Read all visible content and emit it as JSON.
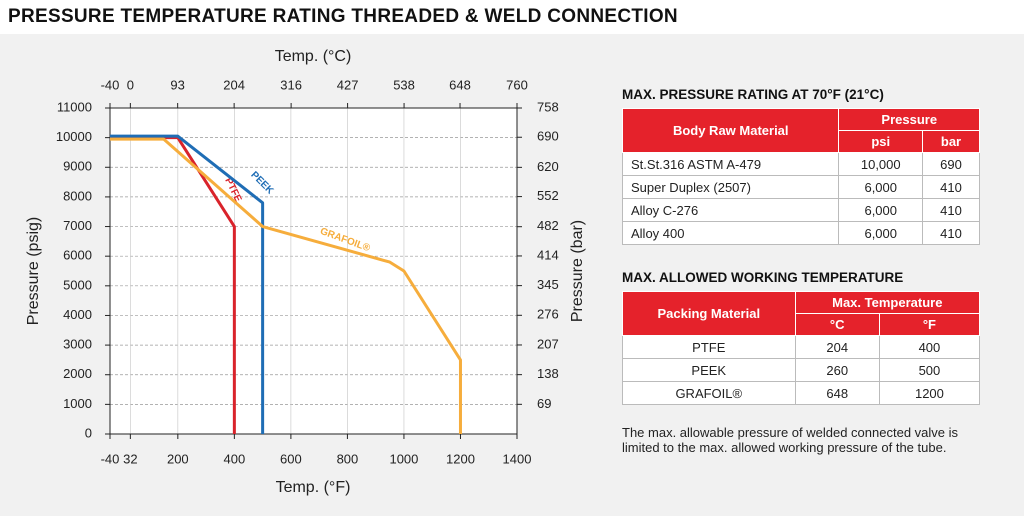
{
  "title": "PRESSURE TEMPERATURE RATING THREADED & WELD CONNECTION",
  "chart_data": {
    "type": "line",
    "x_label": "Temp. (°F)",
    "x2_label": "Temp. (°C)",
    "y_label": "Pressure (psig)",
    "y2_label": "Pressure (bar)",
    "xlim": [
      -40,
      1400
    ],
    "xticks": [
      -40,
      32,
      200,
      400,
      600,
      800,
      1000,
      1200,
      1400
    ],
    "x2lim": [
      -40,
      760
    ],
    "x2ticks": [
      -40,
      0,
      93,
      204,
      316,
      427,
      538,
      648,
      760
    ],
    "ylim": [
      0,
      11000
    ],
    "yticks": [
      0,
      1000,
      2000,
      3000,
      4000,
      5000,
      6000,
      7000,
      8000,
      9000,
      10000,
      11000
    ],
    "y2lim": [
      0,
      758
    ],
    "y2ticks": [
      69,
      138,
      207,
      276,
      345,
      414,
      482,
      552,
      620,
      690,
      758
    ],
    "grid": true,
    "series": [
      {
        "name": "PTFE",
        "color": "#d9232b",
        "x": [
          -40,
          200,
          400,
          400
        ],
        "values": [
          10000,
          10000,
          7000,
          0
        ]
      },
      {
        "name": "PEEK",
        "color": "#1f6db5",
        "x": [
          -40,
          200,
          500,
          500
        ],
        "values": [
          10050,
          10050,
          7800,
          0
        ]
      },
      {
        "name": "GRAFOIL®",
        "color": "#f6ad3c",
        "x": [
          -40,
          150,
          500,
          950,
          1000,
          1200,
          1200
        ],
        "values": [
          9950,
          9950,
          7000,
          5800,
          5500,
          2500,
          0
        ]
      }
    ]
  },
  "tables": [
    {
      "title": "MAX. PRESSURE RATING AT 70°F (21°C)",
      "header": [
        "Body Raw Material",
        "Pressure"
      ],
      "subheader": [
        "psi",
        "bar"
      ],
      "rows": [
        [
          "St.St.316 ASTM A-479",
          "10,000",
          "690"
        ],
        [
          "Super Duplex (2507)",
          "6,000",
          "410"
        ],
        [
          "Alloy C-276",
          "6,000",
          "410"
        ],
        [
          "Alloy 400",
          "6,000",
          "410"
        ]
      ]
    },
    {
      "title": "MAX. ALLOWED WORKING TEMPERATURE",
      "header": [
        "Packing Material",
        "Max. Temperature"
      ],
      "subheader": [
        "°C",
        "°F"
      ],
      "rows": [
        [
          "PTFE",
          "204",
          "400"
        ],
        [
          "PEEK",
          "260",
          "500"
        ],
        [
          "GRAFOIL®",
          "648",
          "1200"
        ]
      ]
    }
  ],
  "note": "The max. allowable pressure of welded connected valve is limited to the max. allowed working pressure of the tube."
}
